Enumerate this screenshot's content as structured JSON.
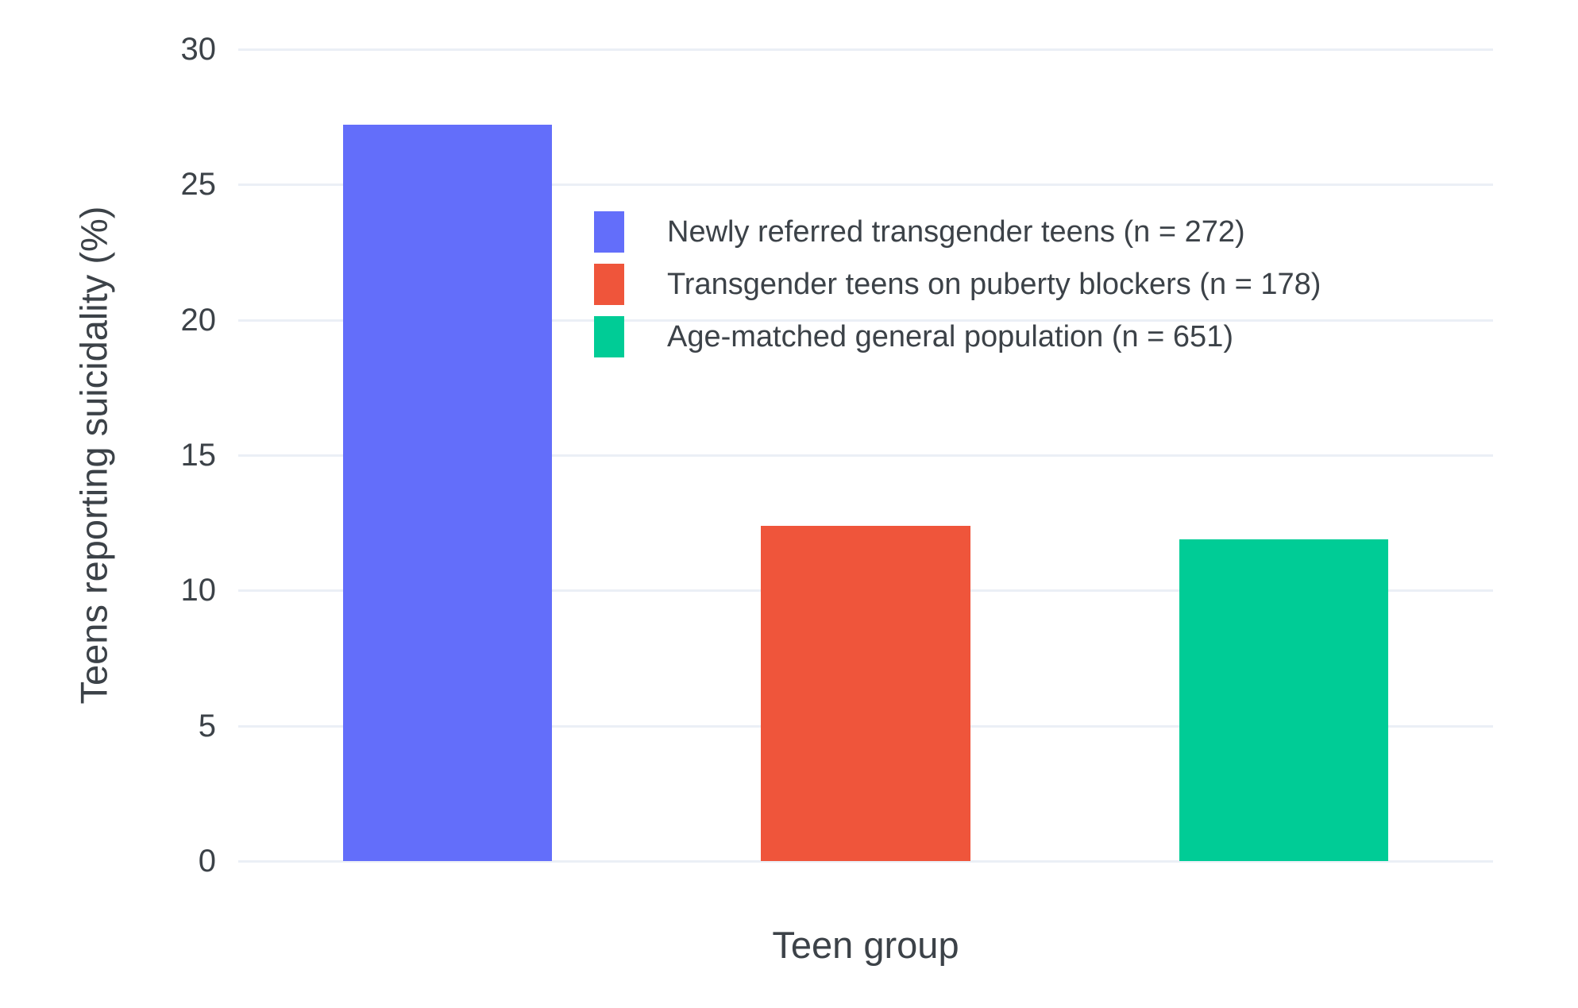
{
  "chart_data": {
    "type": "bar",
    "title": "",
    "xlabel": "Teen group",
    "ylabel": "Teens reporting suicidality (%)",
    "ylim": [
      0,
      30
    ],
    "yticks": [
      30,
      25,
      20,
      15,
      10,
      5,
      0
    ],
    "grid": true,
    "legend_position": "inside top-center",
    "categories": [
      "Newly referred transgender teens (n = 272)",
      "Transgender teens on puberty blockers (n = 178)",
      "Age-matched general population (n = 651)"
    ],
    "values": [
      27.2,
      12.4,
      11.9
    ],
    "bar_colors": [
      "#636EFA",
      "#EF553B",
      "#00CC96"
    ],
    "grid_color": "#EBEFF6",
    "text_color": "#3C4248"
  }
}
